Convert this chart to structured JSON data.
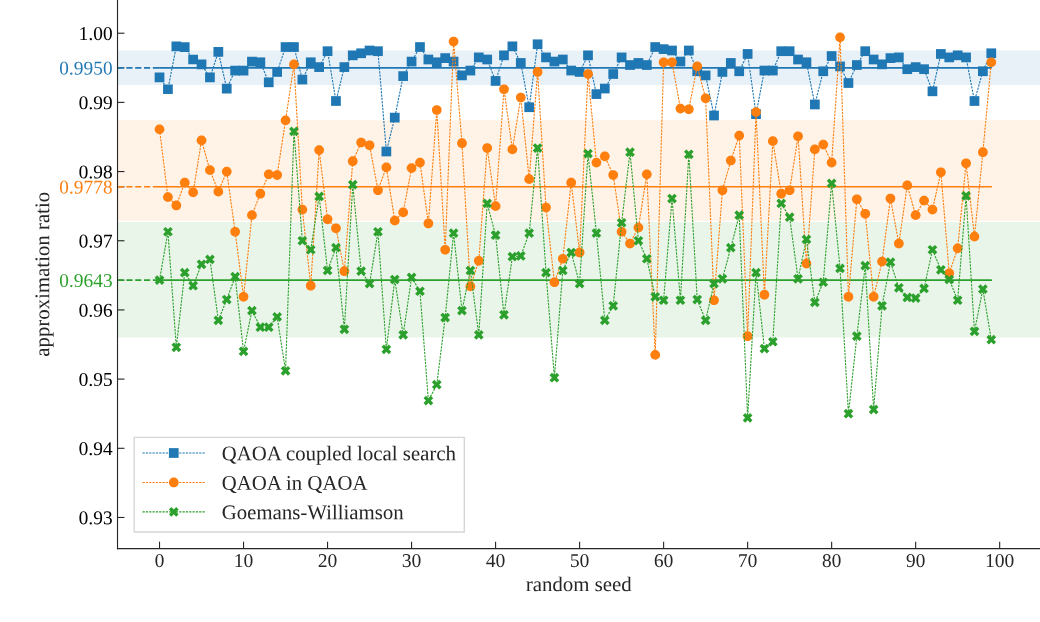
{
  "chart_data": {
    "type": "line",
    "xlabel": "random seed",
    "ylabel": "approximation ratio",
    "x": [
      0,
      1,
      2,
      3,
      4,
      5,
      6,
      7,
      8,
      9,
      10,
      11,
      12,
      13,
      14,
      15,
      16,
      17,
      18,
      19,
      20,
      21,
      22,
      23,
      24,
      25,
      26,
      27,
      28,
      29,
      30,
      31,
      32,
      33,
      34,
      35,
      36,
      37,
      38,
      39,
      40,
      41,
      42,
      43,
      44,
      45,
      46,
      47,
      48,
      49,
      50,
      51,
      52,
      53,
      54,
      55,
      56,
      57,
      58,
      59,
      60,
      61,
      62,
      63,
      64,
      65,
      66,
      67,
      68,
      69,
      70,
      71,
      72,
      73,
      74,
      75,
      76,
      77,
      78,
      79,
      80,
      81,
      82,
      83,
      84,
      85,
      86,
      87,
      88,
      89,
      90,
      91,
      92,
      93,
      94,
      95,
      96,
      97,
      98,
      99
    ],
    "series": [
      {
        "name": "QAOA coupled local search",
        "color": "#1f77b4",
        "marker": "square",
        "line_style": "dashed",
        "values": [
          0.9936,
          0.9919,
          0.9981,
          0.998,
          0.9962,
          0.9955,
          0.9936,
          0.9973,
          0.992,
          0.9946,
          0.9946,
          0.9959,
          0.9958,
          0.9929,
          0.9944,
          0.998,
          0.998,
          0.9933,
          0.9958,
          0.9951,
          0.9974,
          0.9902,
          0.9951,
          0.9968,
          0.9971,
          0.9975,
          0.9974,
          0.9829,
          0.9878,
          0.9938,
          0.9959,
          0.998,
          0.9962,
          0.9958,
          0.9964,
          0.9959,
          0.9939,
          0.9946,
          0.9965,
          0.9962,
          0.9931,
          0.9968,
          0.9981,
          0.9957,
          0.9893,
          0.9984,
          0.9965,
          0.9959,
          0.9962,
          0.9946,
          0.9944,
          0.9968,
          0.9912,
          0.992,
          0.9941,
          0.9965,
          0.9954,
          0.9957,
          0.9954,
          0.998,
          0.9977,
          0.9975,
          0.9959,
          0.9975,
          0.9945,
          0.9939,
          0.9881,
          0.9944,
          0.9957,
          0.9945,
          0.997,
          0.9883,
          0.9946,
          0.9946,
          0.9974,
          0.9974,
          0.9962,
          0.9958,
          0.9897,
          0.9945,
          0.9967,
          0.9952,
          0.9928,
          0.9954,
          0.9974,
          0.9962,
          0.9955,
          0.9964,
          0.9965,
          0.9948,
          0.9951,
          0.9948,
          0.9916,
          0.997,
          0.9965,
          0.9968,
          0.9965,
          0.9902,
          0.9945,
          0.9971
        ]
      },
      {
        "name": "QAOA in QAOA",
        "color": "#ff7f0e",
        "marker": "circle",
        "line_style": "dashed",
        "values": [
          0.9861,
          0.9763,
          0.9751,
          0.9784,
          0.977,
          0.9845,
          0.9802,
          0.9771,
          0.98,
          0.9713,
          0.9619,
          0.9737,
          0.9768,
          0.9796,
          0.9795,
          0.9874,
          0.9955,
          0.9745,
          0.9635,
          0.9831,
          0.9731,
          0.9718,
          0.9656,
          0.9815,
          0.9842,
          0.9838,
          0.9773,
          0.9806,
          0.9729,
          0.9741,
          0.9805,
          0.9813,
          0.9725,
          0.9889,
          0.9687,
          0.9988,
          0.9841,
          0.9634,
          0.9671,
          0.9834,
          0.975,
          0.9919,
          0.9832,
          0.9907,
          0.9789,
          0.9944,
          0.9748,
          0.964,
          0.9674,
          0.9784,
          0.9683,
          0.9941,
          0.9813,
          0.9822,
          0.9795,
          0.9713,
          0.9696,
          0.9719,
          0.9796,
          0.9535,
          0.9958,
          0.9958,
          0.9891,
          0.989,
          0.9952,
          0.9906,
          0.9614,
          0.9773,
          0.9816,
          0.9852,
          0.9562,
          0.9886,
          0.9622,
          0.9844,
          0.9768,
          0.9773,
          0.9851,
          0.9667,
          0.9832,
          0.9839,
          0.9813,
          0.9994,
          0.9619,
          0.976,
          0.9739,
          0.9619,
          0.967,
          0.9761,
          0.9696,
          0.978,
          0.9737,
          0.9758,
          0.9745,
          0.9799,
          0.9653,
          0.9689,
          0.9812,
          0.9706,
          0.9828,
          0.9958
        ]
      },
      {
        "name": "Goemans-Williamson",
        "color": "#2ca02c",
        "marker": "cross",
        "line_style": "dashed",
        "values": [
          0.9643,
          0.9713,
          0.9546,
          0.9654,
          0.9635,
          0.9666,
          0.9673,
          0.9585,
          0.9615,
          0.9648,
          0.954,
          0.9599,
          0.9575,
          0.9575,
          0.959,
          0.9512,
          0.9858,
          0.97,
          0.9687,
          0.9764,
          0.9657,
          0.969,
          0.9572,
          0.9781,
          0.9656,
          0.9638,
          0.9713,
          0.9543,
          0.9644,
          0.9564,
          0.9647,
          0.9627,
          0.9469,
          0.9492,
          0.9589,
          0.9711,
          0.9599,
          0.9657,
          0.9564,
          0.9754,
          0.9708,
          0.9593,
          0.9677,
          0.9678,
          0.9711,
          0.9834,
          0.9654,
          0.9502,
          0.9657,
          0.9683,
          0.9638,
          0.9826,
          0.9711,
          0.9585,
          0.9606,
          0.9726,
          0.9828,
          0.97,
          0.9674,
          0.9619,
          0.9614,
          0.9761,
          0.9614,
          0.9825,
          0.9615,
          0.9585,
          0.9638,
          0.9645,
          0.969,
          0.9737,
          0.9444,
          0.9654,
          0.9544,
          0.9554,
          0.9754,
          0.9734,
          0.9645,
          0.9702,
          0.9611,
          0.964,
          0.9783,
          0.966,
          0.945,
          0.9562,
          0.9664,
          0.9456,
          0.9606,
          0.9669,
          0.9632,
          0.9618,
          0.9617,
          0.9631,
          0.9687,
          0.9658,
          0.9644,
          0.9614,
          0.9765,
          0.9569,
          0.963,
          0.9557
        ]
      }
    ],
    "ref_lines": [
      {
        "axis": "y",
        "value": 0.995,
        "label": "0.9950",
        "color": "#1f77b4"
      },
      {
        "axis": "y",
        "value": 0.9778,
        "label": "0.9778",
        "color": "#ff7f0e"
      },
      {
        "axis": "y",
        "value": 0.9643,
        "label": "0.9643",
        "color": "#2ca02c"
      }
    ],
    "bands": [
      {
        "axis": "y",
        "from": 0.9925,
        "to": 0.9975,
        "color": "#1f77b4"
      },
      {
        "axis": "y",
        "from": 0.9729,
        "to": 0.9874,
        "color": "#ff7f0e"
      },
      {
        "axis": "y",
        "from": 0.956,
        "to": 0.9727,
        "color": "#2ca02c"
      }
    ],
    "xlim": [
      -5,
      104.8
    ],
    "ylim": [
      0.9255,
      1.0048
    ],
    "xticks": [
      0,
      10,
      20,
      30,
      40,
      50,
      60,
      70,
      80,
      90,
      100
    ],
    "yticks": [
      {
        "value": 0.93,
        "label": "0.93"
      },
      {
        "value": 0.94,
        "label": "0.94"
      },
      {
        "value": 0.95,
        "label": "0.95"
      },
      {
        "value": 0.96,
        "label": "0.96"
      },
      {
        "value": 0.97,
        "label": "0.97"
      },
      {
        "value": 0.98,
        "label": "0.98"
      },
      {
        "value": 0.99,
        "label": "0.99"
      },
      {
        "value": 1.0,
        "label": "1.00"
      }
    ],
    "grid": false,
    "legend": "bottom left"
  }
}
